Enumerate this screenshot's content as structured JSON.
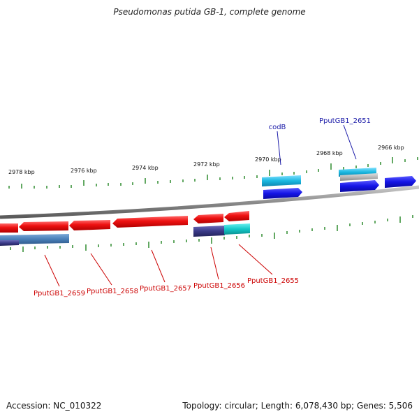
{
  "title": "Pseudomonas putida GB-1, complete genome",
  "footer": {
    "accession": "Accession: NC_010322",
    "summary": "Topology: circular; Length: 6,078,430 bp; Genes: 5,506"
  },
  "colors": {
    "backbone": "#8c8c8c",
    "tick": "#2e8b2e",
    "forward_label": "#1a1aa8",
    "reverse_label": "#cc0000",
    "gene_red": "#ee1111",
    "gene_blue": "#1414e6",
    "gene_cyan": "#1ab8e0",
    "gene_steel": "#4a7fb8",
    "gene_navy": "#3a3a88",
    "gene_teal": "#14c8c8",
    "gene_gray": "#b8b8b8"
  },
  "scale_labels": [
    "2978 kbp",
    "2976 kbp",
    "2974 kbp",
    "2972 kbp",
    "2970 kbp",
    "2968 kbp",
    "2966 kbp"
  ],
  "gene_labels": {
    "forward": [
      "codB",
      "PputGB1_2651"
    ],
    "reverse": [
      "PputGB1_2659",
      "PputGB1_2658",
      "PputGB1_2657",
      "PputGB1_2656",
      "PputGB1_2655"
    ]
  }
}
